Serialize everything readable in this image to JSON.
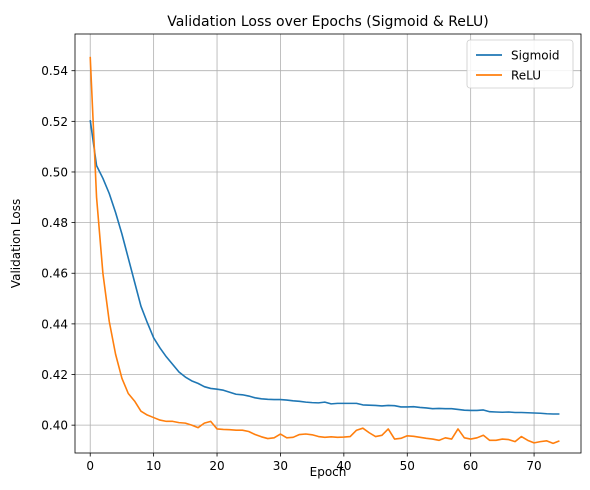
{
  "chart_data": {
    "type": "line",
    "title": "Validation Loss over Epochs (Sigmoid & ReLU)",
    "xlabel": "Epoch",
    "ylabel": "Validation Loss",
    "xlim": [
      -2.4,
      77.4
    ],
    "ylim": [
      0.389,
      0.5545
    ],
    "xticks": [
      0,
      10,
      20,
      30,
      40,
      50,
      60,
      70
    ],
    "yticks": [
      0.4,
      0.42,
      0.44,
      0.46,
      0.48,
      0.5,
      0.52,
      0.54
    ],
    "ytick_labels": [
      "0.40",
      "0.42",
      "0.44",
      "0.46",
      "0.48",
      "0.50",
      "0.52",
      "0.54"
    ],
    "grid": true,
    "legend_position": "upper right",
    "x": [
      0,
      1,
      2,
      3,
      4,
      5,
      6,
      7,
      8,
      9,
      10,
      11,
      12,
      13,
      14,
      15,
      16,
      17,
      18,
      19,
      20,
      21,
      22,
      23,
      24,
      25,
      26,
      27,
      28,
      29,
      30,
      31,
      32,
      33,
      34,
      35,
      36,
      37,
      38,
      39,
      40,
      41,
      42,
      43,
      44,
      45,
      46,
      47,
      48,
      49,
      50,
      51,
      52,
      53,
      54,
      55,
      56,
      57,
      58,
      59,
      60,
      61,
      62,
      63,
      64,
      65,
      66,
      67,
      68,
      69,
      70,
      71,
      72,
      73,
      74
    ],
    "series": [
      {
        "name": "Sigmoid",
        "color": "#1f77b4",
        "values": [
          0.5205,
          0.5025,
          0.4975,
          0.4915,
          0.484,
          0.4755,
          0.466,
          0.4565,
          0.447,
          0.4405,
          0.4345,
          0.4305,
          0.427,
          0.424,
          0.421,
          0.419,
          0.4175,
          0.4165,
          0.4152,
          0.4145,
          0.4142,
          0.4138,
          0.413,
          0.4122,
          0.412,
          0.4115,
          0.4108,
          0.4104,
          0.4102,
          0.4101,
          0.4101,
          0.4099,
          0.4096,
          0.4094,
          0.4091,
          0.4089,
          0.4088,
          0.4091,
          0.4084,
          0.4086,
          0.4086,
          0.4086,
          0.4086,
          0.408,
          0.4079,
          0.4078,
          0.4076,
          0.4078,
          0.4077,
          0.4072,
          0.4072,
          0.4073,
          0.407,
          0.4068,
          0.4065,
          0.4066,
          0.4065,
          0.4065,
          0.4062,
          0.4059,
          0.4058,
          0.4058,
          0.406,
          0.4053,
          0.4052,
          0.4051,
          0.4052,
          0.405,
          0.405,
          0.4049,
          0.4048,
          0.4047,
          0.4045,
          0.4044,
          0.4044
        ]
      },
      {
        "name": "ReLU",
        "color": "#ff7f0e",
        "values": [
          0.5455,
          0.49,
          0.46,
          0.441,
          0.428,
          0.4185,
          0.4125,
          0.4095,
          0.4055,
          0.404,
          0.403,
          0.402,
          0.4015,
          0.4015,
          0.401,
          0.4008,
          0.4,
          0.399,
          0.4008,
          0.4015,
          0.3985,
          0.3983,
          0.3982,
          0.398,
          0.398,
          0.3975,
          0.3963,
          0.3954,
          0.3947,
          0.395,
          0.3965,
          0.395,
          0.3952,
          0.3963,
          0.3965,
          0.3962,
          0.3955,
          0.3952,
          0.3954,
          0.3952,
          0.3953,
          0.3955,
          0.398,
          0.3988,
          0.397,
          0.3955,
          0.396,
          0.3985,
          0.3945,
          0.3948,
          0.3958,
          0.3956,
          0.3952,
          0.3948,
          0.3945,
          0.394,
          0.395,
          0.3945,
          0.3985,
          0.395,
          0.3945,
          0.395,
          0.396,
          0.394,
          0.394,
          0.3945,
          0.3943,
          0.3935,
          0.3955,
          0.394,
          0.393,
          0.3935,
          0.3938,
          0.3928,
          0.3938
        ]
      }
    ]
  }
}
